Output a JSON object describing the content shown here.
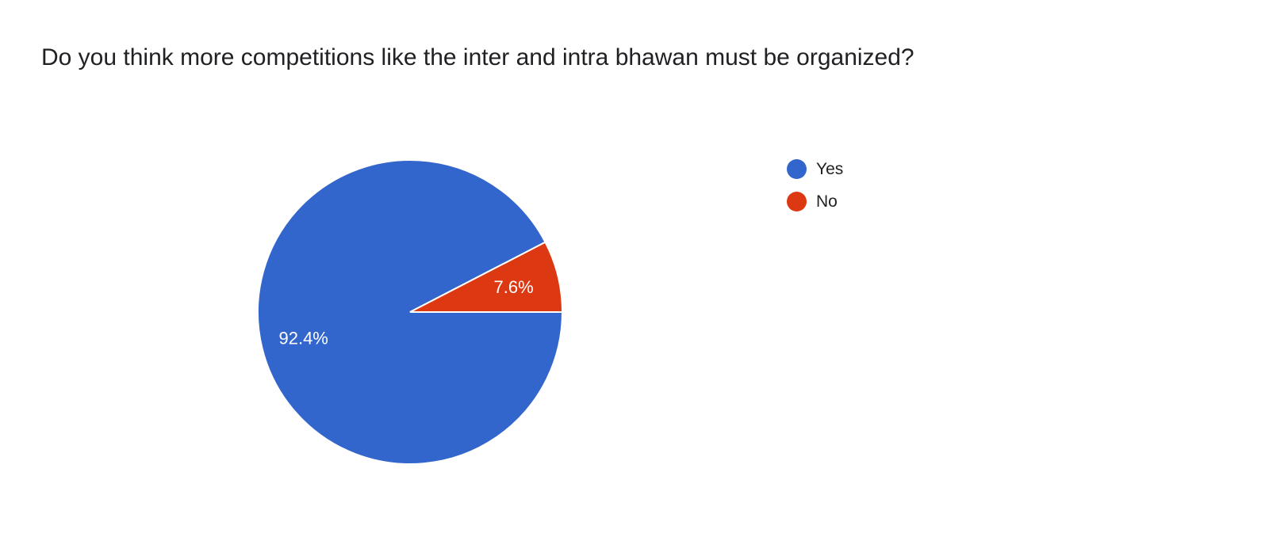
{
  "chart_data": {
    "type": "pie",
    "title": "Do you think more competitions like the inter and intra bhawan must be organized?",
    "categories": [
      "Yes",
      "No"
    ],
    "values": [
      92.4,
      7.6
    ],
    "data_labels": [
      "92.4%",
      "7.6%"
    ],
    "colors": [
      "#3366cc",
      "#dc3912"
    ],
    "legend_position": "right"
  }
}
